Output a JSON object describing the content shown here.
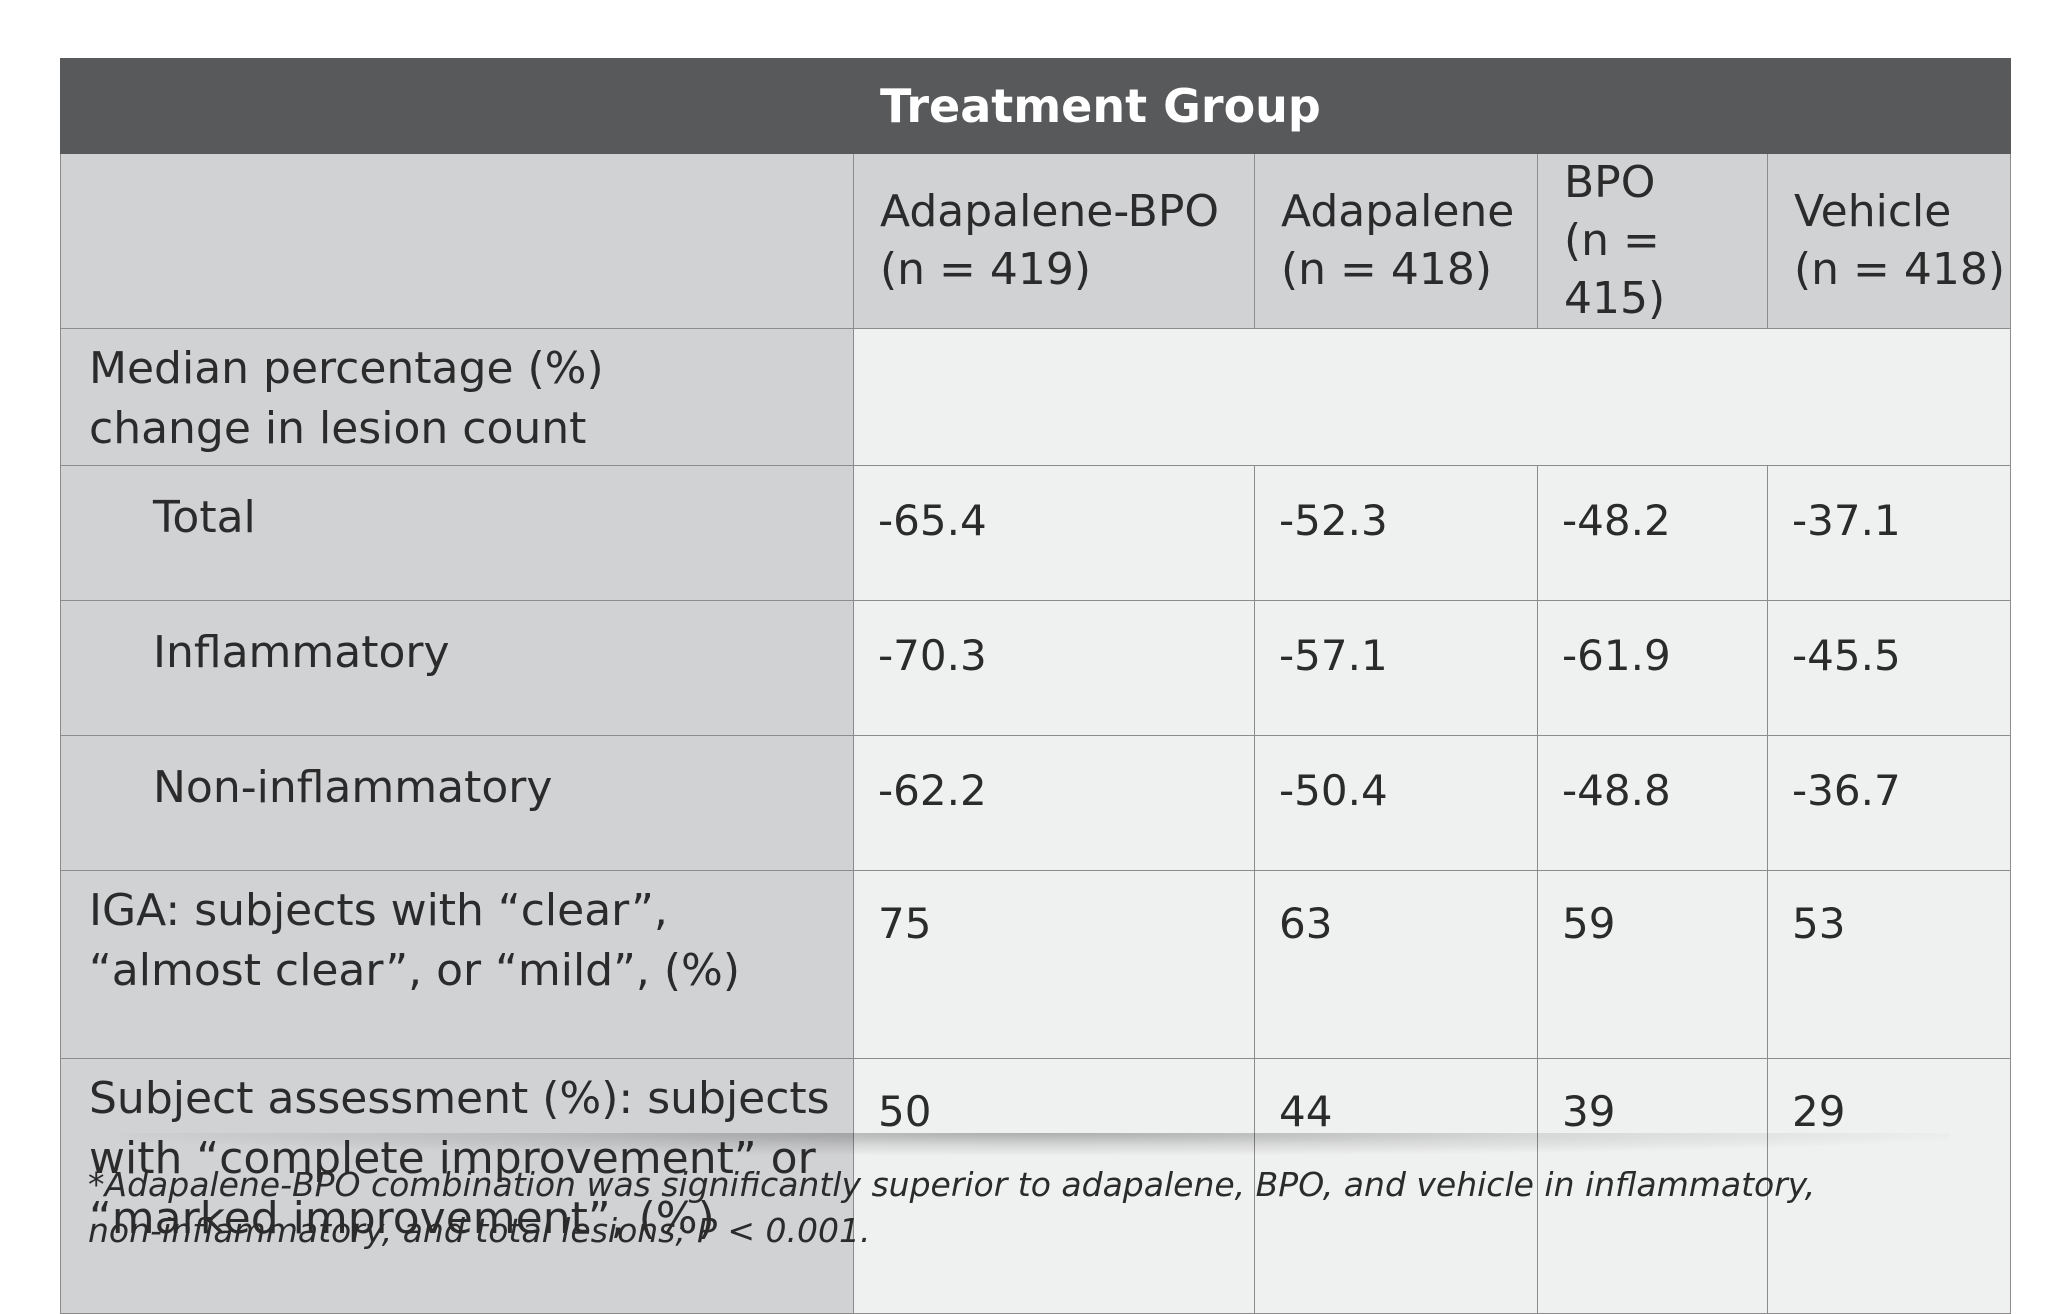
{
  "table": {
    "group_title": "Treatment Group",
    "columns": [
      {
        "name": "Adapalene-BPO",
        "n": "(n = 419)"
      },
      {
        "name": "Adapalene",
        "n": "(n = 418)"
      },
      {
        "name": "BPO",
        "n": "(n = 415)"
      },
      {
        "name": "Vehicle",
        "n": "(n = 418)"
      }
    ],
    "section_label_line1": "Median percentage (%)",
    "section_label_line2": "change in lesion count",
    "rows": [
      {
        "label": "Total",
        "values": [
          "-65.4",
          "-52.3",
          "-48.2",
          "-37.1"
        ]
      },
      {
        "label": "Inflammatory",
        "values": [
          "-70.3",
          "-57.1",
          "-61.9",
          "-45.5"
        ]
      },
      {
        "label": "Non-inflammatory",
        "values": [
          "-62.2",
          "-50.4",
          "-48.8",
          "-36.7"
        ]
      }
    ],
    "iga": {
      "label_line1": "IGA: subjects with “clear”,",
      "label_line2": "“almost clear”, or “mild”, (%)",
      "values": [
        "75",
        "63",
        "59",
        "53"
      ]
    },
    "subject": {
      "label_line1": "Subject assessment (%): subjects",
      "label_line2": "with “complete improvement” or",
      "label_line3": "“marked improvement”, (%)",
      "values": [
        "50",
        "44",
        "39",
        "29"
      ]
    }
  },
  "footnote": {
    "line1": "*Adapalene-BPO combination was significantly superior to adapalene, BPO, and vehicle in inflammatory,",
    "line2": "non-inflammatory, and total lesions; P < 0.001."
  }
}
